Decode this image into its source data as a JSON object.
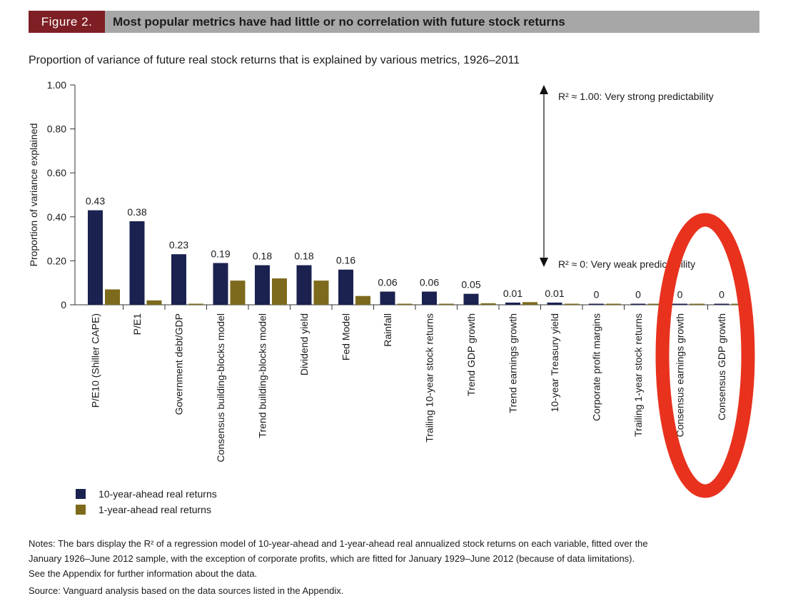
{
  "figure": {
    "label": "Figure 2.",
    "title": "Most popular metrics have had little or no correlation with future stock returns"
  },
  "subtitle": "Proportion of variance of future real stock returns that is explained by various metrics, 1926–2011",
  "chart_data": {
    "type": "bar",
    "ylabel": "Proportion of variance explained",
    "ylim": [
      0,
      1.0
    ],
    "yticks": [
      "1.00",
      "0.80",
      "0.60",
      "0.40",
      "0.20",
      "0"
    ],
    "categories": [
      "P/E10 (Shiller CAPE)",
      "P/E1",
      "Government debt/GDP",
      "Consensus building-blocks model",
      "Trend building-blocks model",
      "Dividend yield",
      "Fed Model",
      "Rainfall",
      "Trailing 10-year stock returns",
      "Trend GDP growth",
      "Trend earnings growth",
      "10-year Treasury yield",
      "Corporate profit margins",
      "Trailing 1-year stock returns",
      "Consensus earnings growth",
      "Consensus GDP growth"
    ],
    "series": [
      {
        "name": "10-year-ahead real returns",
        "color": "#1b2250",
        "values": [
          0.43,
          0.38,
          0.23,
          0.19,
          0.18,
          0.18,
          0.16,
          0.06,
          0.06,
          0.05,
          0.01,
          0.01,
          0,
          0,
          0,
          0
        ]
      },
      {
        "name": "1-year-ahead real returns",
        "color": "#7d6a1c",
        "values": [
          0.07,
          0.02,
          0.003,
          0.11,
          0.12,
          0.11,
          0.04,
          0,
          0,
          0.007,
          0.012,
          0,
          0.003,
          0.003,
          0.003,
          0.003
        ]
      }
    ],
    "data_labels": [
      "0.43",
      "0.38",
      "0.23",
      "0.19",
      "0.18",
      "0.18",
      "0.16",
      "0.06",
      "0.06",
      "0.05",
      "0.01",
      "0.01",
      "0",
      "0",
      "0",
      "0"
    ],
    "annotations": {
      "top": "R² ≈ 1.00: Very strong predictability",
      "bottom": "R² ≈ 0: Very weak predictability"
    },
    "highlight_color": "#e8321e"
  },
  "legend": [
    "10-year-ahead real returns",
    "1-year-ahead real returns"
  ],
  "notes": [
    "Notes: The bars display the R² of a regression model of 10-year-ahead and 1-year-ahead real annualized stock returns on each variable, fitted over the",
    "January 1926–June 2012 sample, with the exception of corporate profits, which are fitted for January 1929–June 2012 (because of data limitations).",
    "See the Appendix for further information about the data."
  ],
  "source": "Source: Vanguard analysis based on the data sources listed in the Appendix."
}
